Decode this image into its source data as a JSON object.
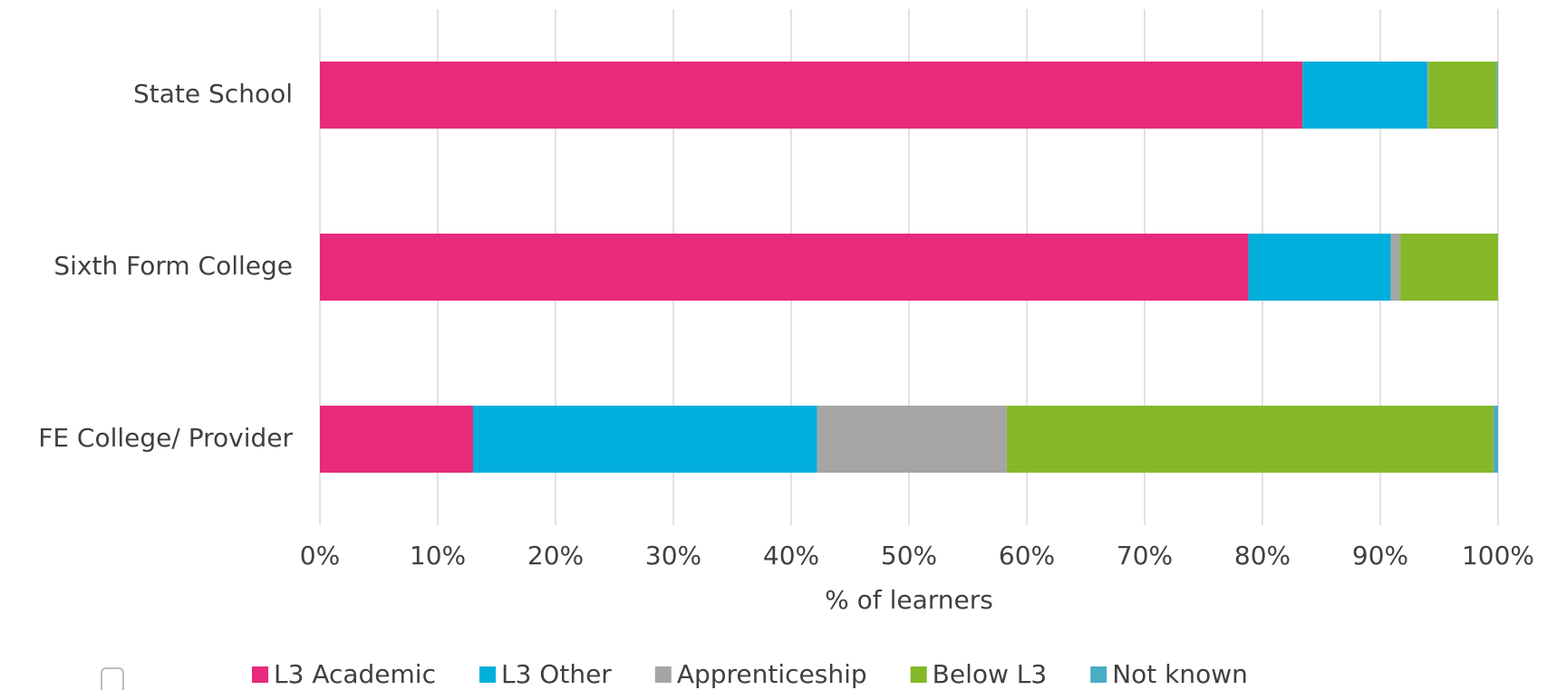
{
  "chart_data": {
    "type": "stacked_barh",
    "categories": [
      "State School",
      "Sixth Form College",
      "FE College/ Provider"
    ],
    "series": [
      {
        "name": "L3 Academic",
        "color": "#e8297c",
        "values": [
          83.4,
          78.8,
          13.0
        ]
      },
      {
        "name": "L3 Other",
        "color": "#00afdb",
        "values": [
          10.6,
          12.1,
          29.2
        ]
      },
      {
        "name": "Apprenticeship",
        "color": "#a5a5a5",
        "values": [
          0.1,
          0.8,
          16.1
        ]
      },
      {
        "name": "Below L3",
        "color": "#84b828",
        "values": [
          5.8,
          8.3,
          41.3
        ]
      },
      {
        "name": "Not known",
        "color": "#4bacc6",
        "values": [
          0.1,
          0.0,
          0.4
        ]
      }
    ],
    "xlabel": "% of learners",
    "xlim": [
      0,
      100
    ],
    "xticks": [
      {
        "value": 0,
        "label": "0%"
      },
      {
        "value": 10,
        "label": "10%"
      },
      {
        "value": 20,
        "label": "20%"
      },
      {
        "value": 30,
        "label": "30%"
      },
      {
        "value": 40,
        "label": "40%"
      },
      {
        "value": 50,
        "label": "50%"
      },
      {
        "value": 60,
        "label": "60%"
      },
      {
        "value": 70,
        "label": "70%"
      },
      {
        "value": 80,
        "label": "80%"
      },
      {
        "value": 90,
        "label": "90%"
      },
      {
        "value": 100,
        "label": "100%"
      }
    ],
    "grid": true,
    "legend": "bottom"
  }
}
